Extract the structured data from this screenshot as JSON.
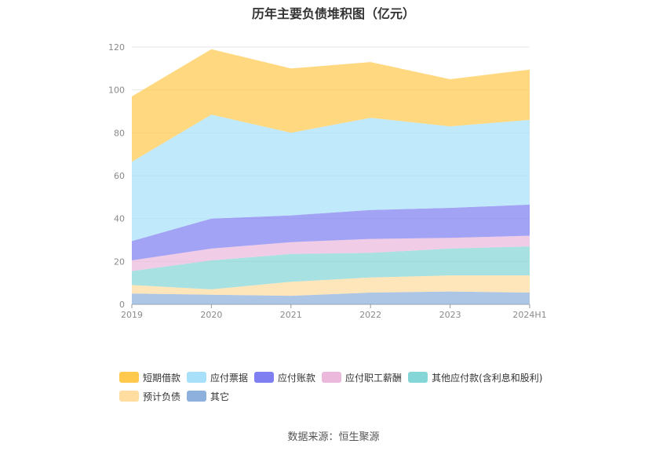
{
  "chart_data": {
    "type": "area",
    "title": "历年主要负债堆积图（亿元）",
    "source": "数据来源：恒生聚源",
    "categories": [
      "2019",
      "2020",
      "2021",
      "2022",
      "2023",
      "2024H1"
    ],
    "ylim": [
      0,
      120
    ],
    "yticks": [
      0,
      20,
      40,
      60,
      80,
      100,
      120
    ],
    "grid": true,
    "legend_position": "bottom",
    "series": [
      {
        "name": "其它",
        "color": "#8eb0dc",
        "values": [
          5.0,
          4.5,
          4.0,
          5.5,
          6.0,
          5.5
        ]
      },
      {
        "name": "预计负债",
        "color": "#ffdca0",
        "values": [
          4.0,
          2.5,
          6.5,
          7.0,
          7.5,
          8.0
        ]
      },
      {
        "name": "其他应付款(含利息和股利)",
        "color": "#85d6d6",
        "values": [
          6.5,
          13.5,
          13.0,
          11.5,
          12.5,
          13.5
        ]
      },
      {
        "name": "应付职工薪酬",
        "color": "#eab9dc",
        "values": [
          5.0,
          5.5,
          5.5,
          6.5,
          5.0,
          5.0
        ]
      },
      {
        "name": "应付账款",
        "color": "#7f7ff2",
        "values": [
          9.0,
          14.0,
          12.5,
          13.5,
          14.0,
          14.5
        ]
      },
      {
        "name": "应付票据",
        "color": "#a8e0fa",
        "values": [
          37.0,
          48.5,
          38.5,
          43.0,
          38.0,
          39.5
        ]
      },
      {
        "name": "短期借款",
        "color": "#ffc94d",
        "values": [
          30.5,
          30.5,
          30.0,
          26.0,
          22.0,
          23.5
        ]
      }
    ],
    "legend_order": [
      "短期借款",
      "应付票据",
      "应付账款",
      "应付职工薪酬",
      "其他应付款(含利息和股利)",
      "预计负债",
      "其它"
    ]
  }
}
